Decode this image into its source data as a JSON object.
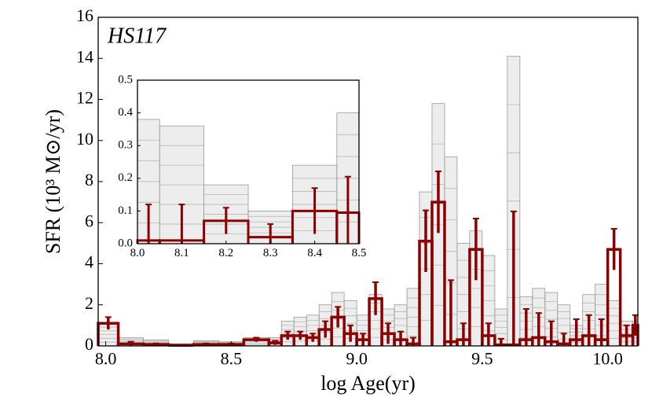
{
  "chart_data": [
    {
      "type": "histogram",
      "annotation": "HS117",
      "xlabel": "log Age(yr)",
      "ylabel": "SFR (10³ M⊙/yr)",
      "bins": [
        7.97,
        8.05,
        8.15,
        8.25,
        8.35,
        8.45,
        8.55,
        8.65,
        8.7,
        8.75,
        8.8,
        8.85,
        8.9,
        8.95,
        9.0,
        9.05,
        9.1,
        9.15,
        9.2,
        9.25,
        9.3,
        9.35,
        9.4,
        9.45,
        9.5,
        9.55,
        9.6,
        9.65,
        9.7,
        9.75,
        9.8,
        9.85,
        9.9,
        9.95,
        10.0,
        10.05,
        10.1,
        10.12
      ],
      "series": [
        {
          "color": "#999999",
          "values": [
            1.1,
            0.4,
            0.3,
            0.1,
            0.25,
            0.2,
            0.4,
            0.4,
            1.2,
            1.4,
            1.5,
            2.0,
            2.6,
            2.2,
            1.5,
            2.5,
            1.8,
            2.0,
            2.8,
            7.5,
            11.8,
            9.2,
            5.0,
            5.6,
            4.4,
            1.8,
            14.1,
            2.4,
            2.8,
            2.6,
            2.0,
            1.0,
            2.5,
            3.0,
            2.2,
            1.2,
            1.2
          ]
        },
        {
          "color": "#8b0000",
          "values": [
            1.1,
            0.1,
            0.07,
            0.03,
            0.07,
            0.07,
            0.3,
            0.15,
            0.5,
            0.5,
            0.4,
            0.8,
            1.4,
            0.6,
            0.3,
            2.3,
            0.6,
            0.3,
            0.1,
            5.1,
            7.0,
            0.2,
            0.3,
            4.7,
            0.5,
            0.05,
            0.05,
            0.3,
            0.4,
            0.2,
            0.1,
            0.3,
            0.5,
            0.3,
            4.7,
            0.5,
            1.0
          ],
          "errors": [
            0.3,
            0.1,
            0.05,
            0.03,
            0.05,
            0.05,
            0.1,
            0.1,
            0.2,
            0.2,
            0.2,
            0.4,
            0.5,
            0.4,
            0.3,
            0.8,
            0.5,
            0.4,
            0.3,
            1.5,
            1.5,
            3.0,
            0.8,
            1.5,
            0.6,
            0.3,
            6.5,
            1.5,
            1.2,
            1.0,
            0.5,
            1.0,
            1.0,
            1.0,
            1.0,
            0.5,
            0.5
          ]
        }
      ],
      "xlim": [
        7.97,
        10.12
      ],
      "ylim": [
        0,
        16
      ],
      "xticks": [
        {
          "value": 8,
          "label": "8.0"
        },
        8.5,
        {
          "value": 9,
          "label": "9.0"
        },
        9.5,
        {
          "value": 10,
          "label": "10.0"
        }
      ],
      "yticks": [
        0,
        2,
        4,
        6,
        8,
        10,
        12,
        14,
        16
      ]
    },
    {
      "type": "histogram",
      "bins": [
        8.0,
        8.05,
        8.15,
        8.25,
        8.35,
        8.45,
        8.5
      ],
      "series": [
        {
          "color": "#999999",
          "values": [
            0.38,
            0.36,
            0.18,
            0.1,
            0.24,
            0.4
          ]
        },
        {
          "color": "#8b0000",
          "values": [
            0.01,
            0.01,
            0.07,
            0.02,
            0.1,
            0.095
          ],
          "errors": [
            0.11,
            0.11,
            0.04,
            0.04,
            0.07,
            0.11
          ]
        }
      ],
      "xlim": [
        8.0,
        8.5
      ],
      "ylim": [
        0,
        0.5
      ],
      "xticks": [
        {
          "value": 8,
          "label": "8.0"
        },
        8.1,
        8.2,
        8.3,
        8.4,
        8.5
      ],
      "yticks": [
        {
          "value": 0,
          "label": "0.0"
        },
        0.1,
        0.2,
        0.3,
        0.4,
        0.5
      ]
    }
  ]
}
